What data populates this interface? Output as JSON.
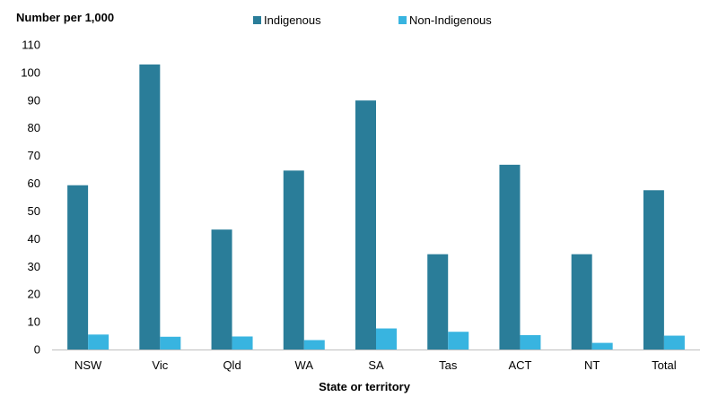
{
  "chart_data": {
    "type": "bar",
    "ylabel": "Number per 1,000",
    "xlabel": "State or territory",
    "categories": [
      "NSW",
      "Vic",
      "Qld",
      "WA",
      "SA",
      "Tas",
      "ACT",
      "NT",
      "Total"
    ],
    "series": [
      {
        "name": "Indigenous",
        "color": "#2a7d99",
        "values": [
          59.3,
          102.9,
          43.3,
          64.6,
          89.9,
          34.4,
          66.7,
          34.4,
          57.5
        ]
      },
      {
        "name": "Non-Indigenous",
        "color": "#38b4e0",
        "values": [
          5.4,
          4.6,
          4.7,
          3.4,
          7.6,
          6.4,
          5.2,
          2.4,
          5.0
        ]
      }
    ],
    "ylim": [
      0,
      110
    ],
    "yticks": [
      0,
      10,
      20,
      30,
      40,
      50,
      60,
      70,
      80,
      90,
      100,
      110
    ],
    "grid": false,
    "legend_position": "top"
  }
}
